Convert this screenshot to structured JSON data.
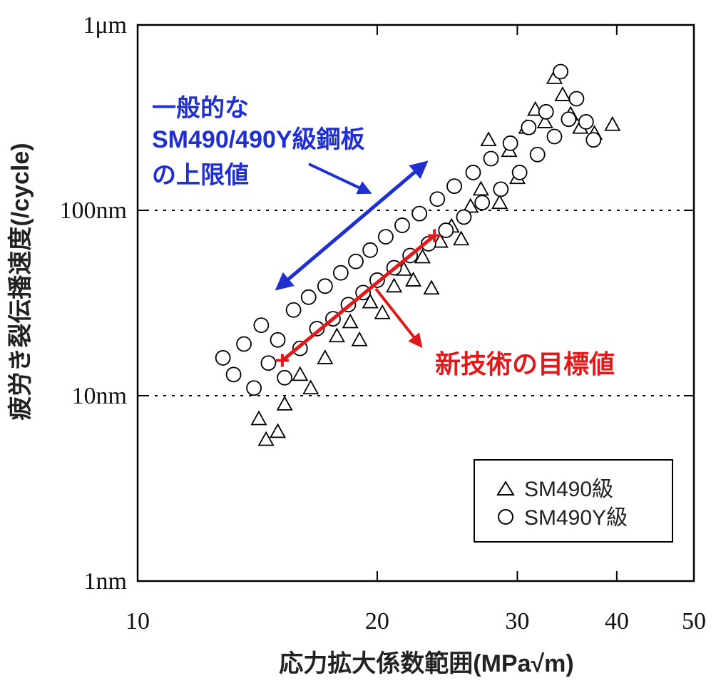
{
  "chart_data": {
    "type": "scatter",
    "title": "",
    "xlabel": "応力拡大係数範囲(MPa√m)",
    "ylabel": "疲労き裂伝播速度(/cycle)",
    "x_scale": "log",
    "y_scale": "log",
    "xlim": [
      10,
      50
    ],
    "ylim": [
      1e-09,
      1e-06
    ],
    "x_ticks": [
      {
        "value": 10,
        "label": "10"
      },
      {
        "value": 20,
        "label": "20"
      },
      {
        "value": 30,
        "label": "30"
      },
      {
        "value": 40,
        "label": "40"
      },
      {
        "value": 50,
        "label": "50"
      }
    ],
    "y_ticks": [
      {
        "value": 1e-09,
        "label": "1nm"
      },
      {
        "value": 1e-08,
        "label": "10nm"
      },
      {
        "value": 1e-07,
        "label": "100nm"
      },
      {
        "value": 1e-06,
        "label": "1μm"
      }
    ],
    "grid": {
      "horizontal_dotted_at": [
        1e-08,
        1e-07
      ]
    },
    "legend_position": "bottom-right",
    "series": [
      {
        "name": "SM490級",
        "marker": "triangle",
        "points": [
          [
            14.2,
            7.5e-09
          ],
          [
            14.5,
            5.8e-09
          ],
          [
            15.0,
            6.4e-09
          ],
          [
            15.3,
            9e-09
          ],
          [
            16.0,
            1.3e-08
          ],
          [
            16.5,
            1.1e-08
          ],
          [
            17.2,
            1.6e-08
          ],
          [
            17.8,
            2.1e-08
          ],
          [
            18.5,
            2.5e-08
          ],
          [
            19.0,
            2e-08
          ],
          [
            19.6,
            3.2e-08
          ],
          [
            20.3,
            2.8e-08
          ],
          [
            21.0,
            3.9e-08
          ],
          [
            21.6,
            4.8e-08
          ],
          [
            22.2,
            4.2e-08
          ],
          [
            22.8,
            5.6e-08
          ],
          [
            23.4,
            3.8e-08
          ],
          [
            24.0,
            6.8e-08
          ],
          [
            24.8,
            8.2e-08
          ],
          [
            25.5,
            7e-08
          ],
          [
            26.2,
            1.05e-07
          ],
          [
            27.0,
            1.3e-07
          ],
          [
            27.6,
            2.4e-07
          ],
          [
            28.5,
            1.1e-07
          ],
          [
            29.3,
            2.1e-07
          ],
          [
            30.0,
            1.5e-07
          ],
          [
            30.8,
            2.8e-07
          ],
          [
            31.6,
            3.5e-07
          ],
          [
            32.5,
            3e-07
          ],
          [
            33.4,
            5.2e-07
          ],
          [
            34.2,
            4.2e-07
          ],
          [
            35.0,
            3.3e-07
          ],
          [
            36.0,
            2.8e-07
          ],
          [
            37.5,
            2.6e-07
          ],
          [
            39.5,
            2.9e-07
          ]
        ]
      },
      {
        "name": "SM490Y級",
        "marker": "circle",
        "points": [
          [
            12.8,
            1.6e-08
          ],
          [
            13.2,
            1.3e-08
          ],
          [
            13.6,
            1.9e-08
          ],
          [
            14.0,
            1.1e-08
          ],
          [
            14.3,
            2.4e-08
          ],
          [
            14.6,
            1.5e-08
          ],
          [
            15.0,
            2e-08
          ],
          [
            15.3,
            1.25e-08
          ],
          [
            15.7,
            2.9e-08
          ],
          [
            16.0,
            1.8e-08
          ],
          [
            16.4,
            3.4e-08
          ],
          [
            16.8,
            2.3e-08
          ],
          [
            17.2,
            3.9e-08
          ],
          [
            17.6,
            2.6e-08
          ],
          [
            18.0,
            4.6e-08
          ],
          [
            18.4,
            3.1e-08
          ],
          [
            18.8,
            5.3e-08
          ],
          [
            19.2,
            3.6e-08
          ],
          [
            19.6,
            6.1e-08
          ],
          [
            20.0,
            4.2e-08
          ],
          [
            20.5,
            7.2e-08
          ],
          [
            21.0,
            4.9e-08
          ],
          [
            21.5,
            8.3e-08
          ],
          [
            22.0,
            5.7e-08
          ],
          [
            22.6,
            9.6e-08
          ],
          [
            23.2,
            6.6e-08
          ],
          [
            23.8,
            1.15e-07
          ],
          [
            24.4,
            7.8e-08
          ],
          [
            25.0,
            1.35e-07
          ],
          [
            25.7,
            9.2e-08
          ],
          [
            26.4,
            1.6e-07
          ],
          [
            27.1,
            1.1e-07
          ],
          [
            27.8,
            1.9e-07
          ],
          [
            28.6,
            1.3e-07
          ],
          [
            29.4,
            2.3e-07
          ],
          [
            30.2,
            1.6e-07
          ],
          [
            31.0,
            2.8e-07
          ],
          [
            31.8,
            2e-07
          ],
          [
            32.6,
            3.4e-07
          ],
          [
            33.4,
            2.5e-07
          ],
          [
            34.0,
            5.6e-07
          ],
          [
            34.8,
            3.1e-07
          ],
          [
            35.6,
            4e-07
          ],
          [
            36.6,
            3e-07
          ],
          [
            37.4,
            2.4e-07
          ]
        ]
      }
    ],
    "annotations": [
      {
        "label_lines": [
          "一般的な",
          "SM490/490Y級鋼板",
          "の上限値"
        ],
        "color": "#1f2fd0",
        "line_from": [
          15.0,
          3.8e-08
        ],
        "line_to": [
          23.0,
          1.8e-07
        ]
      },
      {
        "label_lines": [
          "新技術の目標値"
        ],
        "color": "#e01a1a",
        "line_from": [
          15.2,
          1.55e-08
        ],
        "line_to": [
          23.6,
          7.3e-08
        ]
      }
    ]
  }
}
